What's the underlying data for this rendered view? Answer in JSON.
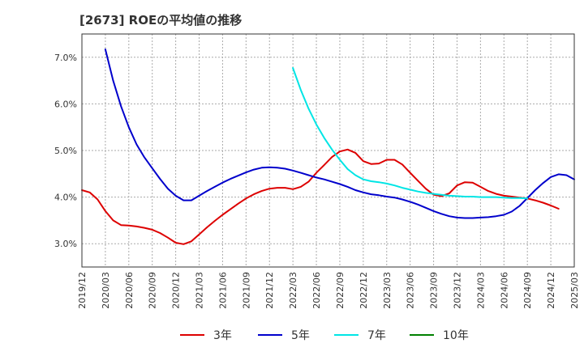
{
  "chart_data": {
    "type": "line",
    "title": "[2673]  ROEの平均値の推移",
    "xlabel": "",
    "ylabel": "",
    "ylim": [
      2.5,
      7.5
    ],
    "yticks": [
      3.0,
      4.0,
      5.0,
      6.0,
      7.0
    ],
    "ytick_labels": [
      "3.0%",
      "4.0%",
      "5.0%",
      "6.0%",
      "7.0%"
    ],
    "x_start": "2019/12",
    "x_end": "2025/03",
    "xtick_labels": [
      "2019/12",
      "2020/03",
      "2020/06",
      "2020/09",
      "2020/12",
      "2021/03",
      "2021/06",
      "2021/09",
      "2021/12",
      "2022/03",
      "2022/06",
      "2022/09",
      "2022/12",
      "2023/03",
      "2023/06",
      "2023/09",
      "2023/12",
      "2024/03",
      "2024/06",
      "2024/09",
      "2024/12",
      "2025/03"
    ],
    "grid": true,
    "legend_position": "bottom",
    "series": [
      {
        "name": "3年",
        "color": "#dd0000",
        "start": "2019/12",
        "values": [
          4.15,
          4.1,
          3.95,
          3.7,
          3.5,
          3.4,
          3.39,
          3.37,
          3.34,
          3.3,
          3.23,
          3.13,
          3.02,
          2.99,
          3.05,
          3.2,
          3.35,
          3.49,
          3.62,
          3.74,
          3.86,
          3.97,
          4.06,
          4.13,
          4.18,
          4.2,
          4.2,
          4.17,
          4.22,
          4.33,
          4.52,
          4.69,
          4.86,
          4.98,
          5.02,
          4.95,
          4.77,
          4.71,
          4.72,
          4.8,
          4.8,
          4.7,
          4.52,
          4.35,
          4.18,
          4.05,
          4.02,
          4.08,
          4.25,
          4.32,
          4.31,
          4.22,
          4.13,
          4.07,
          4.03,
          4.01,
          3.99,
          3.97,
          3.93,
          3.88,
          3.82,
          3.75
        ]
      },
      {
        "name": "5年",
        "color": "#0000cc",
        "start": "2020/03",
        "values": [
          7.17,
          6.5,
          5.95,
          5.5,
          5.13,
          4.85,
          4.62,
          4.39,
          4.18,
          4.03,
          3.93,
          3.93,
          4.03,
          4.13,
          4.22,
          4.31,
          4.39,
          4.46,
          4.53,
          4.59,
          4.63,
          4.64,
          4.63,
          4.61,
          4.57,
          4.52,
          4.47,
          4.42,
          4.38,
          4.33,
          4.28,
          4.22,
          4.15,
          4.1,
          4.06,
          4.04,
          4.01,
          3.99,
          3.95,
          3.9,
          3.84,
          3.77,
          3.7,
          3.64,
          3.59,
          3.56,
          3.55,
          3.55,
          3.56,
          3.57,
          3.59,
          3.62,
          3.69,
          3.81,
          3.98,
          4.15,
          4.3,
          4.43,
          4.49,
          4.47,
          4.38
        ]
      },
      {
        "name": "7年",
        "color": "#00e5e5",
        "start": "2022/03",
        "values": [
          6.77,
          6.3,
          5.9,
          5.56,
          5.27,
          5.02,
          4.8,
          4.6,
          4.47,
          4.38,
          4.34,
          4.32,
          4.29,
          4.25,
          4.2,
          4.16,
          4.12,
          4.09,
          4.07,
          4.05,
          4.03,
          4.02,
          4.01,
          4.01,
          4.0,
          4.0,
          4.0,
          3.99,
          3.98,
          3.98,
          3.97
        ]
      },
      {
        "name": "10年",
        "color": "#008000",
        "start": "",
        "values": []
      }
    ]
  }
}
